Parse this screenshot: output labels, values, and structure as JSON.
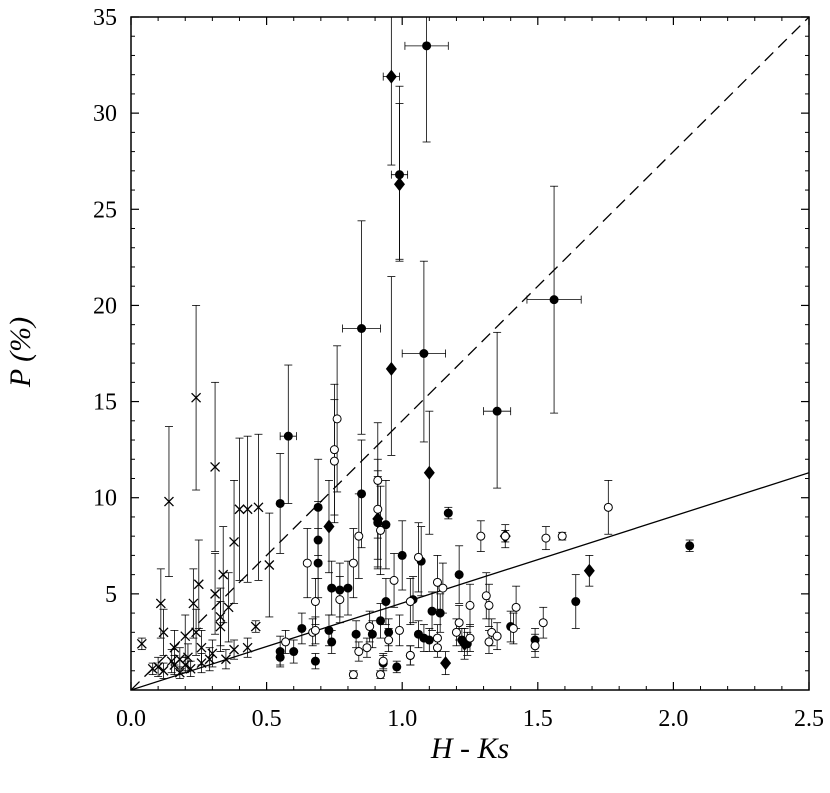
{
  "chart_data": {
    "type": "scatter",
    "title": "",
    "xlabel": "H - Ks",
    "ylabel": "P (%)",
    "xlim": [
      0,
      2.5
    ],
    "ylim": [
      0,
      35
    ],
    "xticks": [
      0.0,
      0.5,
      1.0,
      1.5,
      2.0,
      2.5
    ],
    "xtick_labels": [
      "0.0",
      "0.5",
      "1.0",
      "1.5",
      "2.0",
      "2.5"
    ],
    "yticks": [
      5,
      10,
      15,
      20,
      25,
      30,
      35
    ],
    "ytick_labels": [
      "5",
      "10",
      "15",
      "20",
      "25",
      "30",
      "35"
    ],
    "grid": false,
    "legend": "none",
    "lines": [
      {
        "style": "dashed",
        "x": [
          0,
          2.5
        ],
        "y": [
          0,
          35
        ]
      },
      {
        "style": "solid",
        "x": [
          0,
          2.5
        ],
        "y": [
          0,
          11.3
        ]
      }
    ],
    "series": [
      {
        "marker": "filled-circle",
        "points": [
          [
            1.09,
            33.5,
            7,
            5
          ],
          [
            0.99,
            26.8,
            4.6,
            4.4
          ],
          [
            1.56,
            20.3,
            5.9,
            5.9
          ],
          [
            0.85,
            18.8,
            5.6,
            5.5
          ],
          [
            1.08,
            17.5,
            4.8,
            4.6
          ],
          [
            1.35,
            14.5,
            4.1,
            4.0
          ],
          [
            0.58,
            13.2,
            3.7,
            3.5
          ],
          [
            0.85,
            10.2,
            2.8,
            2.8
          ],
          [
            0.55,
            9.7,
            2.6,
            2.6
          ],
          [
            0.69,
            9.5,
            2.5,
            2.5
          ],
          [
            0.91,
            8.7,
            2.4,
            2.4
          ],
          [
            0.94,
            8.6,
            2.3,
            2.3
          ],
          [
            1.17,
            9.2,
            0.3,
            0.3
          ],
          [
            0.69,
            7.8,
            2.0,
            2.0
          ],
          [
            1.0,
            7.0,
            1.8,
            1.8
          ],
          [
            1.07,
            6.7,
            1.8,
            1.8
          ],
          [
            0.69,
            6.6,
            1.8,
            1.8
          ],
          [
            1.21,
            6.0,
            1.5,
            1.5
          ],
          [
            2.06,
            7.5,
            0.3,
            0.3
          ],
          [
            1.64,
            4.6,
            1.4,
            1.4
          ],
          [
            0.74,
            5.3,
            1.4,
            1.4
          ],
          [
            0.77,
            5.2,
            1.4,
            1.4
          ],
          [
            0.8,
            5.3,
            1.4,
            1.4
          ],
          [
            0.94,
            4.6,
            1.2,
            1.2
          ],
          [
            1.04,
            4.7,
            1.2,
            1.2
          ],
          [
            1.11,
            4.1,
            1.0,
            1.0
          ],
          [
            1.14,
            4.0,
            1.0,
            1.0
          ],
          [
            1.4,
            3.3,
            0.8,
            0.8
          ],
          [
            0.55,
            2.0,
            0.8,
            0.8
          ],
          [
            0.6,
            2.0,
            0.6,
            0.6
          ],
          [
            0.63,
            3.2,
            0.8,
            0.8
          ],
          [
            0.73,
            3.1,
            0.8,
            0.8
          ],
          [
            0.83,
            2.9,
            0.7,
            0.7
          ],
          [
            0.89,
            2.9,
            0.7,
            0.7
          ],
          [
            0.92,
            3.6,
            0.9,
            0.9
          ],
          [
            0.95,
            3.0,
            0.7,
            0.7
          ],
          [
            1.06,
            2.9,
            0.7,
            0.7
          ],
          [
            1.08,
            2.7,
            0.7,
            0.7
          ],
          [
            1.1,
            2.6,
            0.6,
            0.6
          ],
          [
            1.22,
            2.6,
            0.6,
            0.6
          ],
          [
            1.24,
            2.4,
            0.6,
            0.6
          ],
          [
            0.68,
            1.5,
            0.4,
            0.4
          ],
          [
            0.74,
            2.5,
            0.6,
            0.6
          ],
          [
            0.93,
            1.4,
            0.4,
            0.4
          ],
          [
            0.98,
            1.2,
            0.3,
            0.3
          ],
          [
            1.03,
            1.8,
            0.5,
            0.5
          ],
          [
            1.49,
            2.6,
            0.6,
            0.6
          ],
          [
            0.55,
            1.7,
            0.4,
            0.4
          ]
        ]
      },
      {
        "marker": "filled-diamond",
        "points": [
          [
            0.96,
            31.9,
            4.8,
            4.6
          ],
          [
            0.99,
            26.3,
            4.2,
            4.0
          ],
          [
            0.96,
            16.7,
            4.8,
            4.5
          ],
          [
            1.1,
            11.3,
            3.2,
            3.2
          ],
          [
            0.73,
            8.5,
            2.4,
            2.4
          ],
          [
            0.91,
            8.9,
            2.5,
            2.5
          ],
          [
            1.38,
            8.0,
            0.3,
            0.3
          ],
          [
            1.69,
            6.2,
            0.8,
            0.8
          ],
          [
            1.16,
            1.4,
            0.6,
            0.6
          ],
          [
            1.23,
            2.4,
            0.8,
            0.8
          ]
        ]
      },
      {
        "marker": "open-circle",
        "points": [
          [
            0.76,
            14.1,
            3.8,
            3.8
          ],
          [
            0.75,
            12.5,
            3.4,
            3.4
          ],
          [
            0.75,
            11.9,
            3.2,
            3.2
          ],
          [
            0.91,
            10.9,
            3.0,
            3.0
          ],
          [
            0.91,
            9.4,
            2.6,
            2.6
          ],
          [
            0.92,
            8.3,
            2.3,
            2.3
          ],
          [
            0.84,
            8.0,
            2.2,
            2.2
          ],
          [
            1.29,
            8.0,
            0.8,
            0.8
          ],
          [
            1.38,
            8.0,
            0.6,
            0.6
          ],
          [
            1.53,
            7.9,
            0.6,
            0.6
          ],
          [
            1.59,
            8.0,
            0.2,
            0.2
          ],
          [
            1.76,
            9.5,
            1.4,
            1.4
          ],
          [
            1.06,
            6.9,
            1.8,
            1.8
          ],
          [
            0.82,
            6.6,
            1.8,
            1.8
          ],
          [
            0.65,
            6.6,
            1.8,
            1.8
          ],
          [
            0.77,
            4.7,
            1.2,
            1.2
          ],
          [
            1.13,
            5.6,
            1.4,
            1.4
          ],
          [
            1.15,
            5.3,
            1.3,
            1.3
          ],
          [
            1.31,
            4.9,
            1.2,
            1.2
          ],
          [
            1.03,
            4.6,
            1.2,
            1.2
          ],
          [
            1.25,
            4.4,
            1.1,
            1.1
          ],
          [
            1.42,
            4.3,
            1.1,
            1.1
          ],
          [
            1.32,
            4.4,
            1.1,
            1.1
          ],
          [
            0.68,
            4.6,
            1.2,
            1.2
          ],
          [
            0.97,
            5.7,
            1.4,
            1.4
          ],
          [
            1.13,
            2.7,
            0.7,
            0.7
          ],
          [
            0.57,
            2.5,
            0.6,
            0.6
          ],
          [
            0.67,
            3.0,
            0.7,
            0.7
          ],
          [
            0.68,
            3.1,
            0.7,
            0.7
          ],
          [
            0.84,
            2.0,
            0.5,
            0.5
          ],
          [
            0.87,
            2.2,
            0.5,
            0.5
          ],
          [
            0.88,
            3.3,
            0.8,
            0.8
          ],
          [
            0.93,
            1.5,
            0.4,
            0.4
          ],
          [
            0.95,
            2.6,
            0.6,
            0.6
          ],
          [
            0.99,
            3.1,
            0.8,
            0.8
          ],
          [
            1.03,
            1.8,
            0.5,
            0.5
          ],
          [
            1.13,
            2.2,
            0.5,
            0.5
          ],
          [
            1.2,
            3.0,
            0.7,
            0.7
          ],
          [
            1.21,
            3.5,
            0.9,
            0.9
          ],
          [
            1.25,
            2.7,
            0.7,
            0.7
          ],
          [
            1.33,
            3.0,
            0.7,
            0.7
          ],
          [
            1.35,
            2.8,
            0.7,
            0.7
          ],
          [
            1.41,
            3.2,
            0.8,
            0.8
          ],
          [
            1.49,
            2.3,
            0.6,
            0.6
          ],
          [
            1.52,
            3.5,
            0.8,
            0.8
          ],
          [
            0.82,
            0.8,
            0.2,
            0.2
          ],
          [
            0.92,
            0.8,
            0.2,
            0.2
          ],
          [
            1.32,
            2.5,
            0.6,
            0.6
          ]
        ]
      },
      {
        "marker": "x-cross",
        "points": [
          [
            0.24,
            15.2,
            4.8,
            4.8
          ],
          [
            0.31,
            11.6,
            4.4,
            4.4
          ],
          [
            0.14,
            9.8,
            3.9,
            3.9
          ],
          [
            0.4,
            9.4,
            3.7,
            3.7
          ],
          [
            0.43,
            9.4,
            3.8,
            3.8
          ],
          [
            0.47,
            9.5,
            3.8,
            3.8
          ],
          [
            0.38,
            7.7,
            3.2,
            3.2
          ],
          [
            0.51,
            6.5,
            2.7,
            2.7
          ],
          [
            0.34,
            6.0,
            2.5,
            2.5
          ],
          [
            0.25,
            5.5,
            2.3,
            2.3
          ],
          [
            0.31,
            5.0,
            2.1,
            2.1
          ],
          [
            0.11,
            4.5,
            1.8,
            1.8
          ],
          [
            0.23,
            4.5,
            1.8,
            1.8
          ],
          [
            0.36,
            4.3,
            1.8,
            1.8
          ],
          [
            0.33,
            3.8,
            1.5,
            1.5
          ],
          [
            0.12,
            3.0,
            1.2,
            1.2
          ],
          [
            0.2,
            2.8,
            1.1,
            1.1
          ],
          [
            0.24,
            3.0,
            1.2,
            1.2
          ],
          [
            0.33,
            3.3,
            1.3,
            1.3
          ],
          [
            0.46,
            3.3,
            0.3,
            0.3
          ],
          [
            0.04,
            2.4,
            0.3,
            0.3
          ],
          [
            0.16,
            2.2,
            0.9,
            0.9
          ],
          [
            0.26,
            2.2,
            0.9,
            0.9
          ],
          [
            0.38,
            2.1,
            0.5,
            0.5
          ],
          [
            0.43,
            2.2,
            0.5,
            0.5
          ],
          [
            0.15,
            1.5,
            0.6,
            0.6
          ],
          [
            0.18,
            1.6,
            0.6,
            0.6
          ],
          [
            0.21,
            1.7,
            0.7,
            0.7
          ],
          [
            0.29,
            1.6,
            0.6,
            0.6
          ],
          [
            0.35,
            1.6,
            0.5,
            0.5
          ],
          [
            0.1,
            1.2,
            0.5,
            0.5
          ],
          [
            0.12,
            1.0,
            0.4,
            0.4
          ],
          [
            0.16,
            1.3,
            0.5,
            0.5
          ],
          [
            0.22,
            1.1,
            0.4,
            0.4
          ],
          [
            0.26,
            1.4,
            0.5,
            0.5
          ],
          [
            0.3,
            1.9,
            0.7,
            0.7
          ],
          [
            0.08,
            1.1,
            0.3,
            0.3
          ],
          [
            0.18,
            0.9,
            0.3,
            0.3
          ],
          [
            0.2,
            1.3,
            0.4,
            0.4
          ]
        ]
      }
    ]
  }
}
